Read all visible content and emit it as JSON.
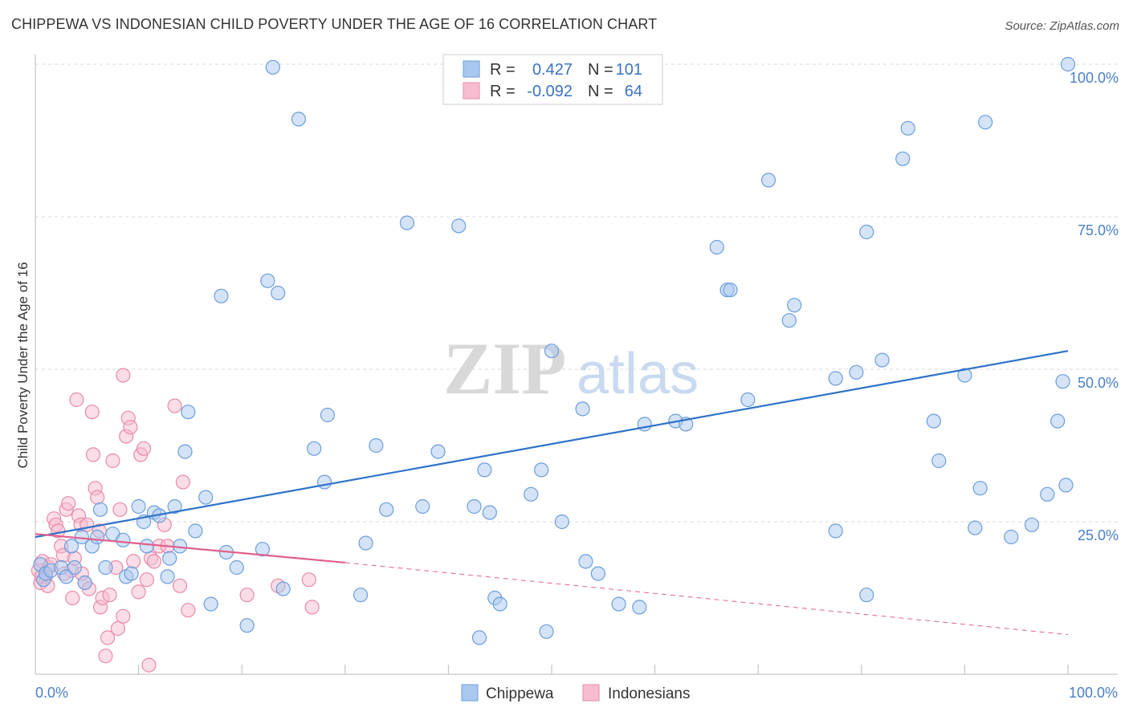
{
  "title": "CHIPPEWA VS INDONESIAN CHILD POVERTY UNDER THE AGE OF 16 CORRELATION CHART",
  "source": "Source: ZipAtlas.com",
  "watermark": {
    "zip": "ZIP",
    "atlas": "atlas"
  },
  "colors": {
    "chippewa_fill": "#a9c8ef",
    "chippewa_stroke": "#6b9edc",
    "chippewa_line": "#2f72c8",
    "indonesian_fill": "#f7bcd0",
    "indonesian_stroke": "#e88aaa",
    "indonesian_line": "#e0608c",
    "grid": "#d9d9d9",
    "tick_label": "#4a7fc8"
  },
  "legend": {
    "rows": [
      {
        "r_label": "R =",
        "r_value": "0.427",
        "n_label": "N =",
        "n_value": "101"
      },
      {
        "r_label": "R =",
        "r_value": "-0.092",
        "n_label": "N =",
        "n_value": "64"
      }
    ]
  },
  "bottom_legend": [
    "Chippewa",
    "Indonesians"
  ],
  "chart_data": {
    "type": "scatter",
    "title": "CHIPPEWA VS INDONESIAN CHILD POVERTY UNDER THE AGE OF 16 CORRELATION CHART",
    "xlabel": "",
    "ylabel": "Child Poverty Under the Age of 16",
    "xlim": [
      0,
      100
    ],
    "ylim": [
      0,
      100
    ],
    "x_tick_labels": [
      "0.0%",
      "100.0%"
    ],
    "y_ticks": [
      25,
      50,
      75,
      100
    ],
    "y_tick_labels": [
      "25.0%",
      "50.0%",
      "75.0%",
      "100.0%"
    ],
    "grid": "horizontal dashed",
    "legend_position": "top-center",
    "series": [
      {
        "name": "Chippewa",
        "trend": {
          "x0": 0,
          "y0": 22.5,
          "x1": 100,
          "y1": 53.0
        },
        "points": [
          [
            0.5,
            18
          ],
          [
            0.8,
            15.5
          ],
          [
            1.0,
            16.5
          ],
          [
            1.5,
            17
          ],
          [
            2.5,
            17.5
          ],
          [
            3.0,
            16
          ],
          [
            3.5,
            21
          ],
          [
            3.8,
            17.5
          ],
          [
            4.5,
            22.5
          ],
          [
            4.8,
            15
          ],
          [
            5.5,
            21
          ],
          [
            6.0,
            22.5
          ],
          [
            6.3,
            27
          ],
          [
            6.8,
            17.5
          ],
          [
            7.5,
            23
          ],
          [
            8.5,
            22
          ],
          [
            8.8,
            16
          ],
          [
            9.3,
            16.5
          ],
          [
            10.0,
            27.5
          ],
          [
            10.5,
            25
          ],
          [
            10.8,
            21
          ],
          [
            11.5,
            26.5
          ],
          [
            12.0,
            26
          ],
          [
            13.0,
            19
          ],
          [
            13.5,
            27.5
          ],
          [
            12.8,
            16
          ],
          [
            14.0,
            21
          ],
          [
            14.5,
            36.5
          ],
          [
            14.8,
            43
          ],
          [
            15.5,
            23.5
          ],
          [
            16.5,
            29
          ],
          [
            17.0,
            11.5
          ],
          [
            18.0,
            62
          ],
          [
            18.5,
            20
          ],
          [
            19.5,
            17.5
          ],
          [
            20.5,
            8
          ],
          [
            22.0,
            20.5
          ],
          [
            22.5,
            64.5
          ],
          [
            23.0,
            99.5
          ],
          [
            23.5,
            62.5
          ],
          [
            24.0,
            14
          ],
          [
            25.5,
            91
          ],
          [
            27.0,
            37
          ],
          [
            28.0,
            31.5
          ],
          [
            28.3,
            42.5
          ],
          [
            32.0,
            21.5
          ],
          [
            31.5,
            13
          ],
          [
            33.0,
            37.5
          ],
          [
            34.0,
            27
          ],
          [
            36.0,
            74
          ],
          [
            37.5,
            27.5
          ],
          [
            39.0,
            36.5
          ],
          [
            41.0,
            73.5
          ],
          [
            42.5,
            27.5
          ],
          [
            43.0,
            6
          ],
          [
            43.5,
            33.5
          ],
          [
            44.0,
            26.5
          ],
          [
            44.5,
            12.5
          ],
          [
            45.0,
            11.5
          ],
          [
            48.0,
            29.5
          ],
          [
            49.0,
            33.5
          ],
          [
            49.5,
            7
          ],
          [
            50.0,
            53
          ],
          [
            51.0,
            25
          ],
          [
            53.0,
            43.5
          ],
          [
            53.3,
            18.5
          ],
          [
            54.5,
            16.5
          ],
          [
            56.5,
            11.5
          ],
          [
            58.5,
            11
          ],
          [
            59.0,
            41
          ],
          [
            62.0,
            41.5
          ],
          [
            63.0,
            41
          ],
          [
            66.0,
            70
          ],
          [
            67.0,
            63
          ],
          [
            67.3,
            63
          ],
          [
            69.0,
            45
          ],
          [
            71.0,
            81
          ],
          [
            73.0,
            58
          ],
          [
            73.5,
            60.5
          ],
          [
            77.5,
            48.5
          ],
          [
            77.5,
            23.5
          ],
          [
            79.5,
            49.5
          ],
          [
            80.5,
            72.5
          ],
          [
            80.5,
            13
          ],
          [
            82.0,
            51.5
          ],
          [
            84.0,
            84.5
          ],
          [
            84.5,
            89.5
          ],
          [
            87.0,
            41.5
          ],
          [
            87.5,
            35
          ],
          [
            90.0,
            49
          ],
          [
            92.0,
            90.5
          ],
          [
            91.5,
            30.5
          ],
          [
            91.0,
            24
          ],
          [
            94.5,
            22.5
          ],
          [
            96.5,
            24.5
          ],
          [
            98.0,
            29.5
          ],
          [
            99.0,
            41.5
          ],
          [
            99.5,
            48
          ],
          [
            99.8,
            31
          ],
          [
            100.0,
            100
          ]
        ]
      },
      {
        "name": "Indonesians",
        "trend": {
          "x0": 0,
          "y0": 23.0,
          "x1": 30,
          "y1": 18.3,
          "dash_to_x": 100,
          "dash_to_y": 6.5
        },
        "points": [
          [
            0.3,
            17
          ],
          [
            0.5,
            15
          ],
          [
            0.7,
            18.5
          ],
          [
            1.0,
            16
          ],
          [
            1.3,
            17.5
          ],
          [
            1.5,
            18
          ],
          [
            1.8,
            25.5
          ],
          [
            2.0,
            24.5
          ],
          [
            2.2,
            23.5
          ],
          [
            2.5,
            21
          ],
          [
            2.7,
            19.5
          ],
          [
            3.0,
            27
          ],
          [
            3.2,
            28
          ],
          [
            3.5,
            17
          ],
          [
            3.6,
            12.5
          ],
          [
            3.8,
            19
          ],
          [
            4.0,
            45
          ],
          [
            4.2,
            26
          ],
          [
            4.4,
            24.5
          ],
          [
            4.5,
            16.5
          ],
          [
            4.8,
            15
          ],
          [
            5.0,
            24.5
          ],
          [
            5.2,
            14
          ],
          [
            5.5,
            43
          ],
          [
            5.6,
            36
          ],
          [
            5.8,
            30.5
          ],
          [
            6.0,
            29
          ],
          [
            6.2,
            23.5
          ],
          [
            6.3,
            11
          ],
          [
            6.5,
            12.5
          ],
          [
            6.8,
            3
          ],
          [
            7.0,
            6
          ],
          [
            7.2,
            13
          ],
          [
            7.5,
            35
          ],
          [
            7.8,
            17.5
          ],
          [
            8.0,
            7.5
          ],
          [
            8.2,
            27
          ],
          [
            8.5,
            49
          ],
          [
            8.5,
            9.5
          ],
          [
            8.8,
            39
          ],
          [
            9.0,
            42
          ],
          [
            9.2,
            40.5
          ],
          [
            9.5,
            18.5
          ],
          [
            10.0,
            13.5
          ],
          [
            10.2,
            36
          ],
          [
            10.5,
            37
          ],
          [
            10.8,
            15.5
          ],
          [
            11.0,
            1.5
          ],
          [
            11.2,
            19
          ],
          [
            11.5,
            18.5
          ],
          [
            12.0,
            21
          ],
          [
            12.5,
            24.5
          ],
          [
            12.8,
            21
          ],
          [
            13.5,
            44
          ],
          [
            14.0,
            14.5
          ],
          [
            14.3,
            31.5
          ],
          [
            14.8,
            10.5
          ],
          [
            20.5,
            13
          ],
          [
            23.5,
            14.5
          ],
          [
            26.5,
            15.5
          ],
          [
            26.8,
            11
          ],
          [
            0.6,
            16
          ],
          [
            1.2,
            14.5
          ],
          [
            2.8,
            16.5
          ]
        ]
      }
    ]
  }
}
